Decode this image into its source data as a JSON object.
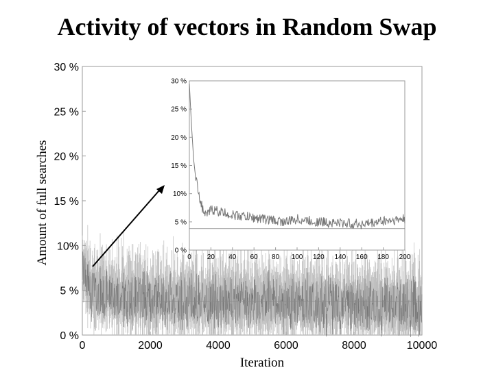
{
  "chart_data": [
    {
      "type": "line",
      "title": "Activity of vectors in Random Swap",
      "xlabel": "Iteration",
      "ylabel": "Amount of full searches",
      "xlim": [
        0,
        10000
      ],
      "ylim": [
        0,
        30
      ],
      "x_ticks": [
        "0",
        "2000",
        "4000",
        "6000",
        "8000",
        "10000"
      ],
      "y_ticks": [
        "0 %",
        "5 %",
        "10%",
        "15 %",
        "20 %",
        "25 %",
        "30 %"
      ],
      "reference_line": 3.8,
      "series": [
        {
          "x": [
            0,
            250,
            500,
            1000,
            1500,
            2000,
            3000,
            4000,
            5000,
            6000,
            7000,
            8000,
            9000,
            9500,
            10000
          ],
          "values": [
            7.5,
            4.8,
            4.6,
            4.3,
            4.1,
            4.0,
            3.8,
            3.7,
            3.7,
            3.6,
            3.5,
            3.4,
            3.3,
            3.2,
            3.1
          ],
          "band": [
            2.2,
            3.2
          ],
          "color": "#bdbdbd",
          "line_color": "#666666"
        }
      ]
    },
    {
      "type": "line",
      "role": "inset",
      "xlim": [
        0,
        200
      ],
      "ylim": [
        0,
        30
      ],
      "x_ticks": [
        "0",
        "20",
        "40",
        "60",
        "80",
        "100",
        "120",
        "140",
        "160",
        "180",
        "200"
      ],
      "y_ticks": [
        "0 %",
        "5 %",
        "10%",
        "15 %",
        "20 %",
        "25 %",
        "30 %"
      ],
      "reference_line": 3.8,
      "series": [
        {
          "x": [
            0,
            2,
            4,
            6,
            8,
            10,
            12,
            15,
            18,
            20,
            25,
            30,
            40,
            50,
            60,
            70,
            80,
            90,
            100,
            110,
            120,
            130,
            140,
            150,
            160,
            170,
            180,
            190,
            200
          ],
          "values": [
            29.5,
            22,
            16,
            12.5,
            11,
            9,
            7.5,
            6.0,
            6.5,
            7.2,
            7.0,
            6.7,
            6.2,
            6.0,
            5.7,
            5.5,
            5.2,
            5.0,
            5.5,
            5.2,
            5.0,
            4.9,
            4.8,
            4.7,
            4.6,
            4.8,
            5.2,
            5.3,
            5.5
          ],
          "noise": 0.9,
          "color": "#777777"
        }
      ]
    }
  ]
}
